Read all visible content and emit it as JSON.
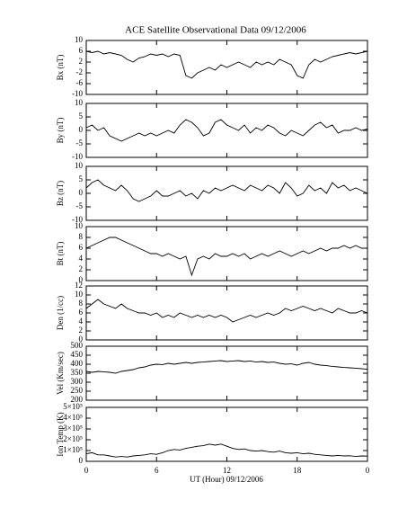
{
  "chart_data": [
    {
      "type": "line",
      "title": "ACE Satellite Observational Data   09/12/2006",
      "ylabel": "Bx (nT)",
      "color": "#000000",
      "x": [
        0,
        0.5,
        1,
        1.5,
        2,
        2.5,
        3,
        3.5,
        4,
        4.5,
        5,
        5.5,
        6,
        6.5,
        7,
        7.5,
        8,
        8.5,
        9,
        9.5,
        10,
        10.5,
        11,
        11.5,
        12,
        12.5,
        13,
        13.5,
        14,
        14.5,
        15,
        15.5,
        16,
        16.5,
        17,
        17.5,
        18,
        18.5,
        19,
        19.5,
        20,
        20.5,
        21,
        21.5,
        22,
        22.5,
        23,
        23.5,
        24
      ],
      "values": [
        6,
        5.5,
        6,
        5,
        5.5,
        5,
        4.5,
        3,
        2,
        3.5,
        4,
        5,
        4.5,
        5,
        4,
        5,
        4.5,
        -3,
        -4,
        -2,
        -1,
        0,
        -1,
        1,
        0,
        1,
        2,
        1,
        0,
        2,
        1,
        2,
        1,
        3,
        2,
        1,
        -3,
        -4,
        1,
        3,
        2,
        3,
        4,
        4.5,
        5,
        5.5,
        5,
        5.5,
        6
      ],
      "xlim": [
        0,
        24
      ],
      "ylim": [
        -10,
        10
      ],
      "yticks": [
        -10,
        -6,
        -2,
        2,
        6,
        10
      ]
    },
    {
      "type": "line",
      "ylabel": "By (nT)",
      "color": "#000000",
      "x": [
        0,
        0.5,
        1,
        1.5,
        2,
        2.5,
        3,
        3.5,
        4,
        4.5,
        5,
        5.5,
        6,
        6.5,
        7,
        7.5,
        8,
        8.5,
        9,
        9.5,
        10,
        10.5,
        11,
        11.5,
        12,
        12.5,
        13,
        13.5,
        14,
        14.5,
        15,
        15.5,
        16,
        16.5,
        17,
        17.5,
        18,
        18.5,
        19,
        19.5,
        20,
        20.5,
        21,
        21.5,
        22,
        22.5,
        23,
        23.5,
        24
      ],
      "values": [
        1,
        2,
        0,
        1,
        -2,
        -3,
        -4,
        -3,
        -2,
        -1,
        -2,
        -1,
        -2,
        -1,
        0,
        -1,
        2,
        4,
        3,
        1,
        -2,
        -1,
        3,
        4,
        2,
        1,
        0,
        2,
        -1,
        1,
        0,
        2,
        1,
        -1,
        -2,
        0,
        -1,
        -2,
        0,
        2,
        3,
        1,
        2,
        -1,
        0,
        0,
        1,
        0,
        0.5
      ],
      "xlim": [
        0,
        24
      ],
      "ylim": [
        -10,
        10
      ],
      "yticks": [
        -10,
        -5,
        0,
        5,
        10
      ]
    },
    {
      "type": "line",
      "ylabel": "Bz (nT)",
      "color": "#000000",
      "x": [
        0,
        0.5,
        1,
        1.5,
        2,
        2.5,
        3,
        3.5,
        4,
        4.5,
        5,
        5.5,
        6,
        6.5,
        7,
        7.5,
        8,
        8.5,
        9,
        9.5,
        10,
        10.5,
        11,
        11.5,
        12,
        12.5,
        13,
        13.5,
        14,
        14.5,
        15,
        15.5,
        16,
        16.5,
        17,
        17.5,
        18,
        18.5,
        19,
        19.5,
        20,
        20.5,
        21,
        21.5,
        22,
        22.5,
        23,
        23.5,
        24
      ],
      "values": [
        2,
        4,
        5,
        3,
        2,
        1,
        3,
        1,
        -2,
        -3,
        -2,
        -1,
        1,
        -1,
        -1,
        0,
        1,
        -1,
        0,
        -2,
        1,
        0,
        2,
        1,
        2,
        3,
        2,
        1,
        3,
        2,
        1,
        3,
        2,
        0,
        4,
        2,
        -1,
        0,
        3,
        1,
        2,
        0,
        4,
        2,
        3,
        1,
        2,
        1,
        0
      ],
      "xlim": [
        0,
        24
      ],
      "ylim": [
        -10,
        10
      ],
      "yticks": [
        -10,
        -5,
        0,
        5,
        10
      ]
    },
    {
      "type": "line",
      "ylabel": "Bt (nT)",
      "color": "#000000",
      "x": [
        0,
        0.5,
        1,
        1.5,
        2,
        2.5,
        3,
        3.5,
        4,
        4.5,
        5,
        5.5,
        6,
        6.5,
        7,
        7.5,
        8,
        8.5,
        9,
        9.5,
        10,
        10.5,
        11,
        11.5,
        12,
        12.5,
        13,
        13.5,
        14,
        14.5,
        15,
        15.5,
        16,
        16.5,
        17,
        17.5,
        18,
        18.5,
        19,
        19.5,
        20,
        20.5,
        21,
        21.5,
        22,
        22.5,
        23,
        23.5,
        24
      ],
      "values": [
        6,
        6.5,
        7,
        7.5,
        8,
        8,
        7.5,
        7,
        6.5,
        6,
        5.5,
        5,
        5,
        4.5,
        5,
        4.5,
        4,
        4.5,
        1,
        4,
        4.5,
        4,
        5,
        4.5,
        4.5,
        5,
        4.5,
        5,
        4,
        4.5,
        5,
        4.5,
        5,
        5.5,
        5,
        4.5,
        5,
        5.5,
        5,
        5.5,
        6,
        5.5,
        6,
        6,
        6.5,
        6,
        6.5,
        6,
        6
      ],
      "xlim": [
        0,
        24
      ],
      "ylim": [
        0,
        10
      ],
      "yticks": [
        0,
        2,
        4,
        6,
        8,
        10
      ]
    },
    {
      "type": "line",
      "ylabel": "Den (1/cc)",
      "color": "#000000",
      "x": [
        0,
        0.5,
        1,
        1.5,
        2,
        2.5,
        3,
        3.5,
        4,
        4.5,
        5,
        5.5,
        6,
        6.5,
        7,
        7.5,
        8,
        8.5,
        9,
        9.5,
        10,
        10.5,
        11,
        11.5,
        12,
        12.5,
        13,
        13.5,
        14,
        14.5,
        15,
        15.5,
        16,
        16.5,
        17,
        17.5,
        18,
        18.5,
        19,
        19.5,
        20,
        20.5,
        21,
        21.5,
        22,
        22.5,
        23,
        23.5,
        24
      ],
      "values": [
        7,
        8,
        9,
        8,
        7.5,
        7,
        8,
        7,
        6.5,
        6,
        6,
        5.5,
        6,
        5,
        5.5,
        5,
        6,
        5.5,
        5,
        5.5,
        5,
        5.5,
        5,
        5.5,
        5,
        4,
        4.5,
        5,
        5.5,
        5,
        5.5,
        6,
        5.5,
        6,
        7,
        6.5,
        7,
        7.5,
        7,
        6.5,
        7,
        6.5,
        6,
        7,
        6.5,
        6,
        6,
        6.5,
        6
      ],
      "xlim": [
        0,
        24
      ],
      "ylim": [
        0,
        12
      ],
      "yticks": [
        0,
        2,
        4,
        6,
        8,
        10,
        12
      ]
    },
    {
      "type": "line",
      "ylabel": "Vel (Km/sec)",
      "color": "#000000",
      "x": [
        0,
        0.5,
        1,
        1.5,
        2,
        2.5,
        3,
        3.5,
        4,
        4.5,
        5,
        5.5,
        6,
        6.5,
        7,
        7.5,
        8,
        8.5,
        9,
        9.5,
        10,
        10.5,
        11,
        11.5,
        12,
        12.5,
        13,
        13.5,
        14,
        14.5,
        15,
        15.5,
        16,
        16.5,
        17,
        17.5,
        18,
        18.5,
        19,
        19.5,
        20,
        20.5,
        21,
        21.5,
        22,
        22.5,
        23,
        23.5,
        24
      ],
      "values": [
        360,
        355,
        360,
        358,
        355,
        350,
        360,
        365,
        370,
        380,
        385,
        395,
        400,
        398,
        405,
        400,
        405,
        410,
        405,
        410,
        412,
        415,
        418,
        420,
        415,
        418,
        420,
        415,
        418,
        412,
        415,
        410,
        412,
        405,
        400,
        402,
        395,
        405,
        410,
        400,
        395,
        392,
        388,
        385,
        382,
        380,
        378,
        375,
        372
      ],
      "xlim": [
        0,
        24
      ],
      "ylim": [
        200,
        500
      ],
      "yticks": [
        200,
        250,
        300,
        350,
        400,
        450,
        500
      ]
    },
    {
      "type": "line",
      "ylabel": "Ion Temp (K)",
      "xlabel": "UT (Hour)  09/12/2006",
      "color": "#000000",
      "x": [
        0,
        0.5,
        1,
        1.5,
        2,
        2.5,
        3,
        3.5,
        4,
        4.5,
        5,
        5.5,
        6,
        6.5,
        7,
        7.5,
        8,
        8.5,
        9,
        9.5,
        10,
        10.5,
        11,
        11.5,
        12,
        12.5,
        13,
        13.5,
        14,
        14.5,
        15,
        15.5,
        16,
        16.5,
        17,
        17.5,
        18,
        18.5,
        19,
        19.5,
        20,
        20.5,
        21,
        21.5,
        22,
        22.5,
        23,
        23.5,
        24
      ],
      "values": [
        70000,
        80000,
        60000,
        60000,
        50000,
        40000,
        45000,
        40000,
        50000,
        55000,
        60000,
        70000,
        65000,
        80000,
        100000,
        110000,
        105000,
        120000,
        130000,
        140000,
        145000,
        160000,
        150000,
        160000,
        140000,
        120000,
        110000,
        115000,
        100000,
        95000,
        100000,
        90000,
        85000,
        95000,
        80000,
        75000,
        80000,
        70000,
        75000,
        65000,
        60000,
        55000,
        50000,
        55000,
        50000,
        52000,
        45000,
        50000,
        48000
      ],
      "xlim": [
        0,
        24
      ],
      "ylim": [
        0,
        500000
      ],
      "yticks": [
        0,
        {
          "value": 100000,
          "label": "1×10⁵"
        },
        {
          "value": 200000,
          "label": "2×10⁵"
        },
        {
          "value": 300000,
          "label": "3×10⁵"
        },
        {
          "value": 400000,
          "label": "4×10⁵"
        },
        {
          "value": 500000,
          "label": "5×10⁵"
        }
      ],
      "xticks": [
        0,
        6,
        12,
        18,
        {
          "value": 24,
          "label": "0"
        }
      ]
    }
  ]
}
